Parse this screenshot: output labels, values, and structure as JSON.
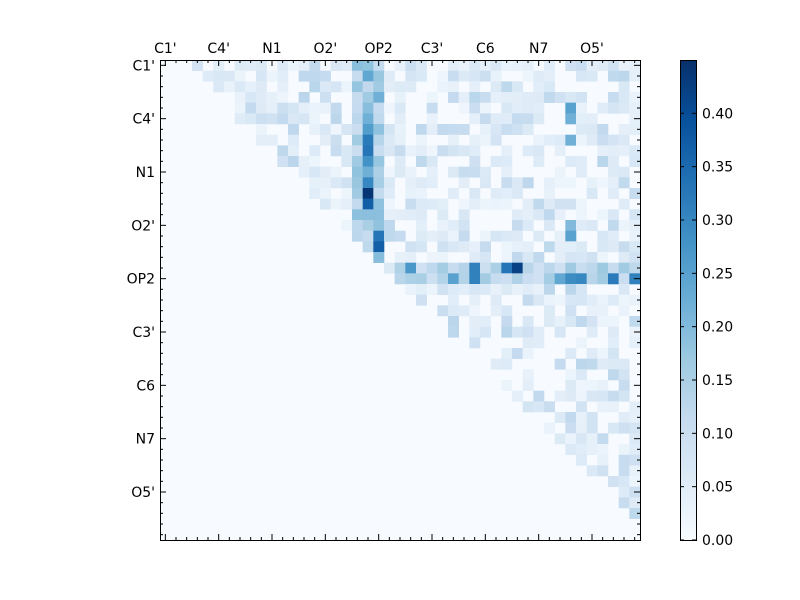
{
  "chart_data": {
    "type": "heatmap",
    "title": "",
    "xlabel": "",
    "ylabel": "",
    "x_tick_labels": [
      "C1'",
      "C4'",
      "N1",
      "O2'",
      "OP2",
      "C3'",
      "C6",
      "N7",
      "O5'"
    ],
    "y_tick_labels": [
      "C1'",
      "C4'",
      "N1",
      "O2'",
      "OP2",
      "C3'",
      "C6",
      "N7",
      "O5'"
    ],
    "colorbar": {
      "colormap": "Blues",
      "min": 0.0,
      "max": 0.45,
      "ticks": [
        "0.00",
        "0.05",
        "0.10",
        "0.15",
        "0.20",
        "0.25",
        "0.30",
        "0.35",
        "0.40"
      ]
    },
    "grid_size": 45,
    "triangle": "upper",
    "notable_cells": [
      {
        "row": 12,
        "col": 19,
        "value": 0.44
      },
      {
        "row": 13,
        "col": 19,
        "value": 0.37
      },
      {
        "row": 17,
        "col": 20,
        "value": 0.37
      },
      {
        "row": 16,
        "col": 20,
        "value": 0.33
      },
      {
        "row": 8,
        "col": 19,
        "value": 0.33
      },
      {
        "row": 7,
        "col": 19,
        "value": 0.32
      },
      {
        "row": 11,
        "col": 19,
        "value": 0.3
      },
      {
        "row": 9,
        "col": 19,
        "value": 0.28
      },
      {
        "row": 19,
        "col": 33,
        "value": 0.42
      },
      {
        "row": 19,
        "col": 32,
        "value": 0.33
      },
      {
        "row": 19,
        "col": 29,
        "value": 0.31
      },
      {
        "row": 19,
        "col": 23,
        "value": 0.27
      },
      {
        "row": 20,
        "col": 29,
        "value": 0.31
      },
      {
        "row": 20,
        "col": 39,
        "value": 0.3
      },
      {
        "row": 20,
        "col": 38,
        "value": 0.29
      },
      {
        "row": 20,
        "col": 42,
        "value": 0.32
      },
      {
        "row": 20,
        "col": 44,
        "value": 0.31
      },
      {
        "row": 20,
        "col": 37,
        "value": 0.24
      },
      {
        "row": 20,
        "col": 27,
        "value": 0.25
      },
      {
        "row": 1,
        "col": 19,
        "value": 0.24
      },
      {
        "row": 3,
        "col": 20,
        "value": 0.22
      },
      {
        "row": 4,
        "col": 38,
        "value": 0.25
      },
      {
        "row": 5,
        "col": 19,
        "value": 0.22
      },
      {
        "row": 5,
        "col": 38,
        "value": 0.22
      },
      {
        "row": 7,
        "col": 38,
        "value": 0.22
      },
      {
        "row": 14,
        "col": 19,
        "value": 0.19
      },
      {
        "row": 14,
        "col": 20,
        "value": 0.19
      },
      {
        "row": 15,
        "col": 38,
        "value": 0.2
      },
      {
        "row": 16,
        "col": 38,
        "value": 0.25
      },
      {
        "row": 10,
        "col": 19,
        "value": 0.22
      },
      {
        "row": 6,
        "col": 19,
        "value": 0.26
      }
    ]
  }
}
